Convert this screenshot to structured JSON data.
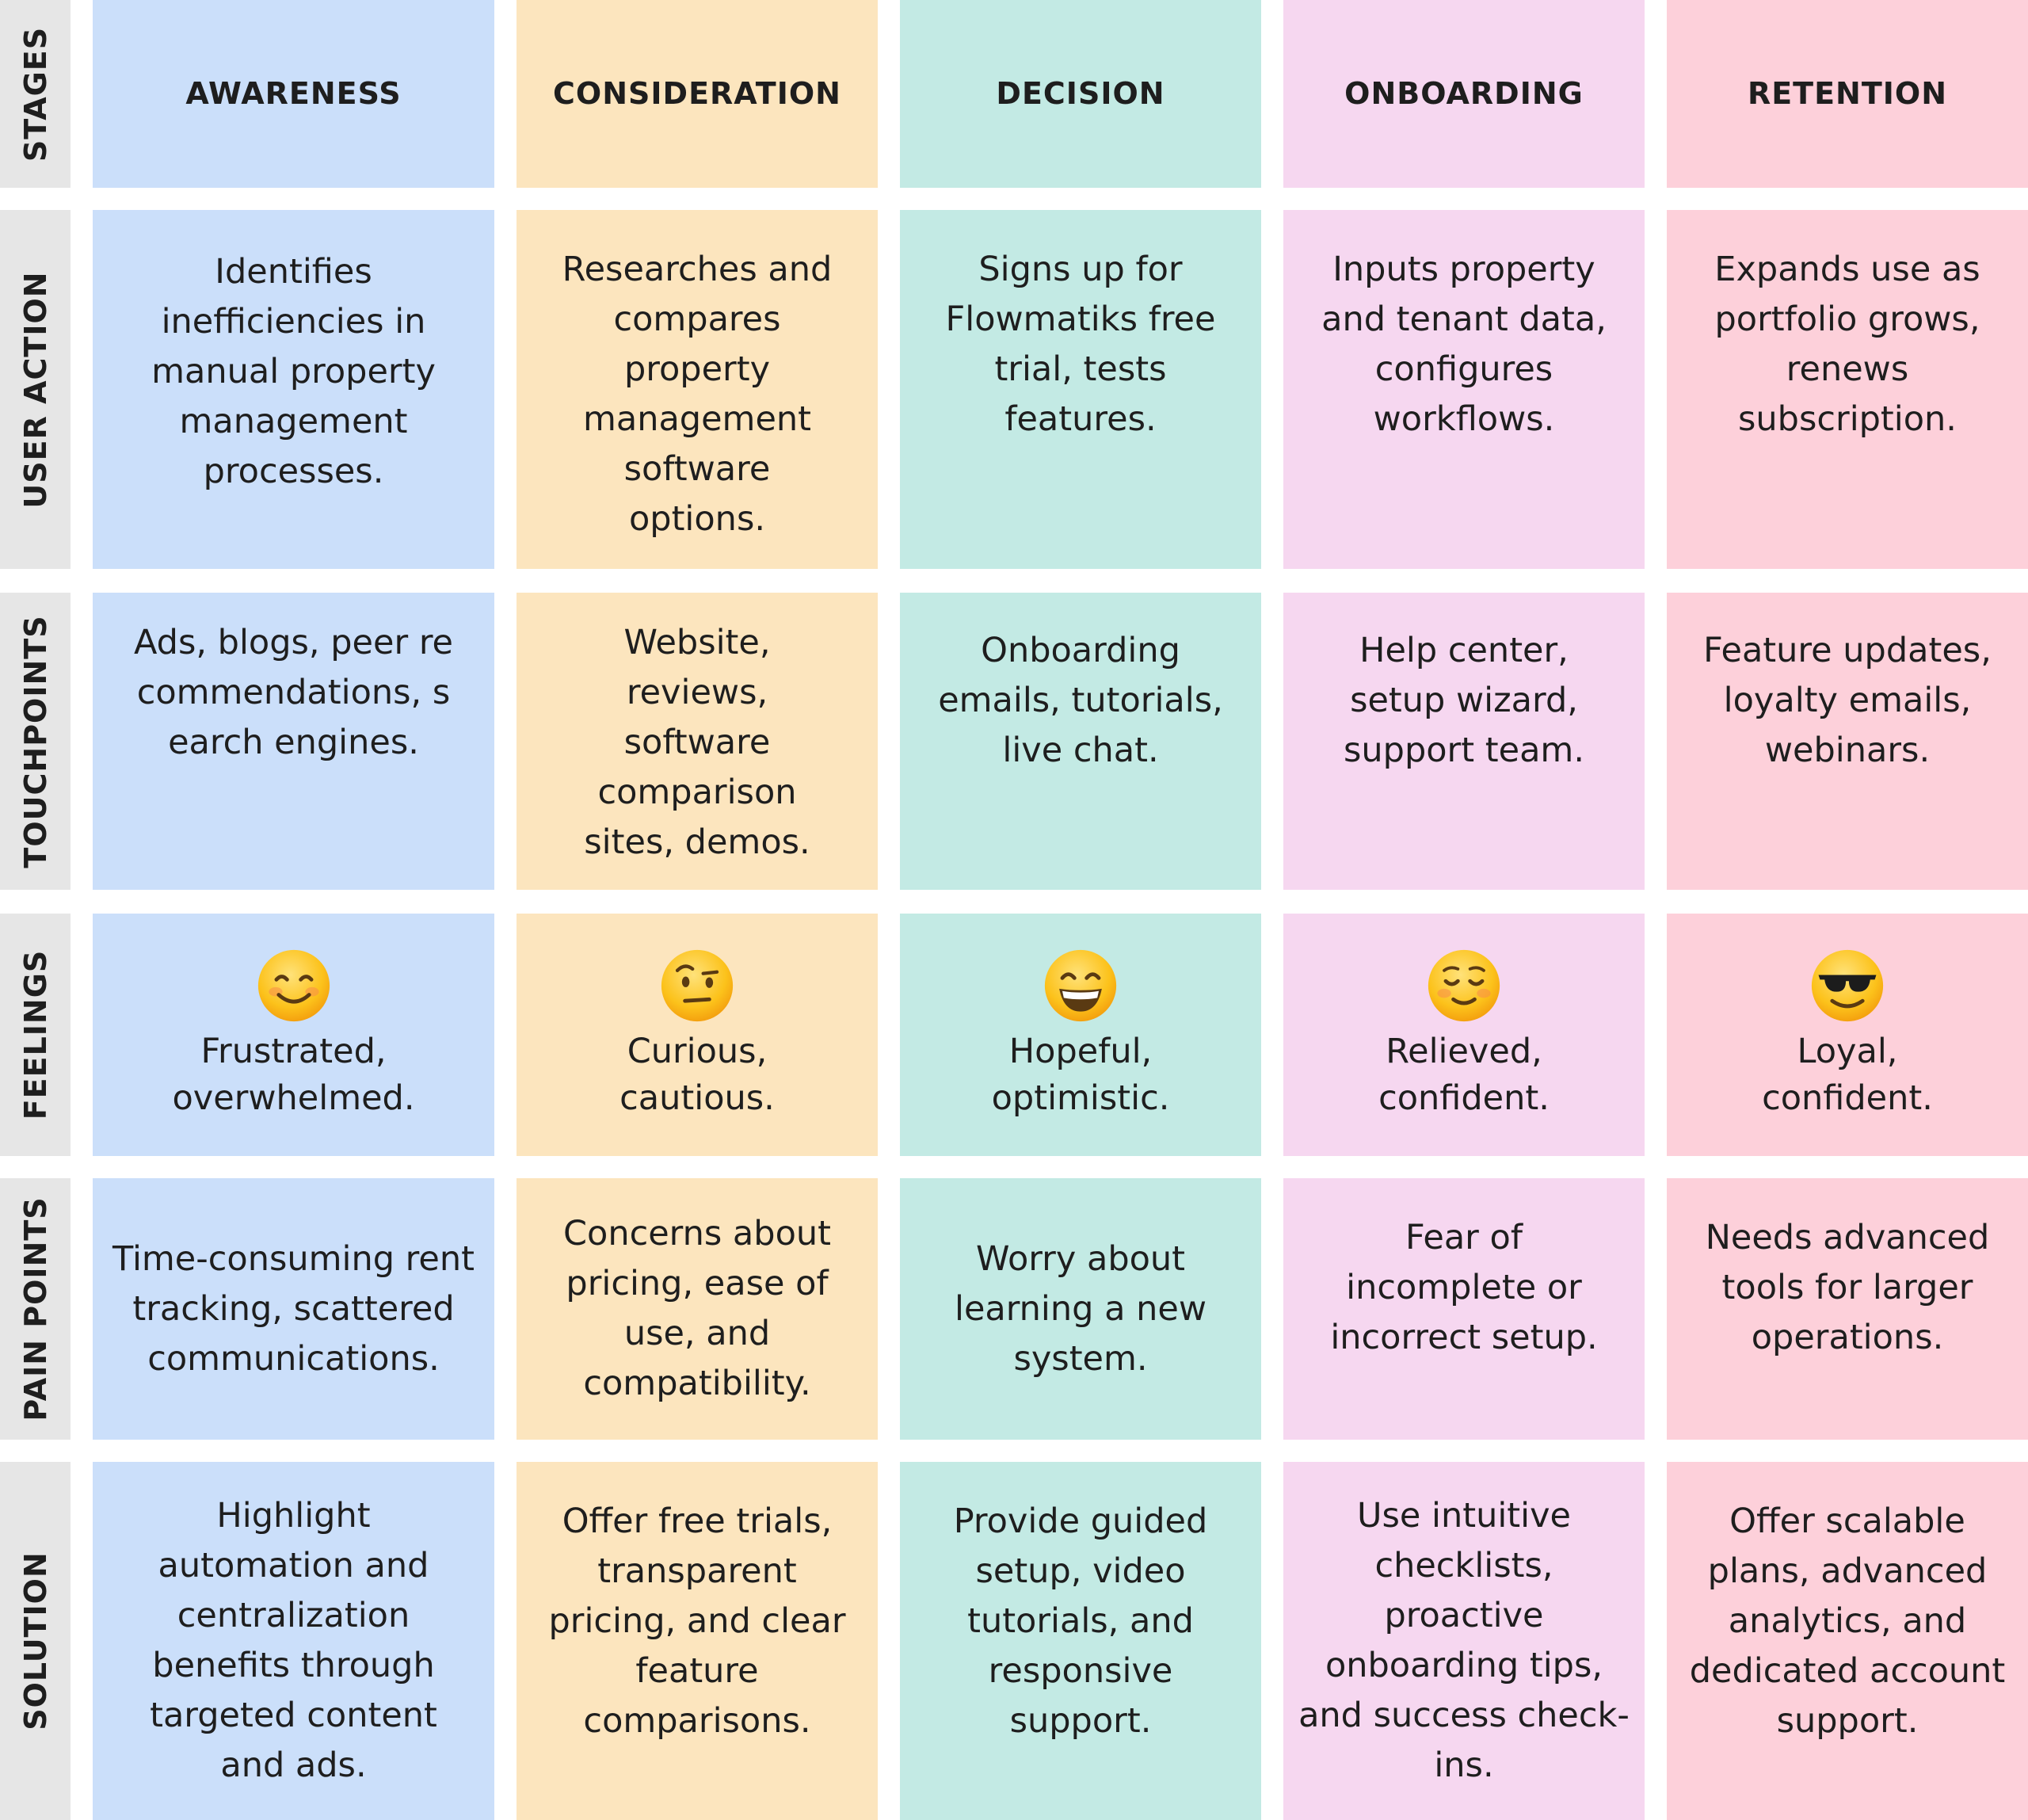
{
  "colors": {
    "awareness": "#cbdffa",
    "consideration": "#fce5be",
    "decision": "#c3eae4",
    "onboarding": "#f6d7f0",
    "retention": "#fdd0da",
    "row_label_bg": "#e6e6e6"
  },
  "row_labels": {
    "stages": "STAGES",
    "user_action": "USER ACTION",
    "touchpoints": "TOUCHPOINTS",
    "feelings": "FEELINGS",
    "pain_points": "PAIN POINTS",
    "solution": "SOLUTION"
  },
  "stages": {
    "awareness": {
      "name": "AWARENESS",
      "user_action": "Identifies inefficiencies in manual property management processes.",
      "touchpoints": "Ads, blogs, peer recommendations, search engines.",
      "feeling_icon": "smiling-face-icon",
      "feeling": "Frustrated, overwhelmed.",
      "pain_points": "Time-consuming rent tracking, scattered communications.",
      "solution": "Highlight automation and centralization benefits through targeted content and ads."
    },
    "consideration": {
      "name": "CONSIDERATION",
      "user_action": "Researches and compares property management software options.",
      "touchpoints": "Website, reviews, software comparison sites, demos.",
      "feeling_icon": "raised-eyebrow-face-icon",
      "feeling": "Curious, cautious.",
      "pain_points": "Concerns about pricing, ease of use, and compatibility.",
      "solution": "Offer free trials, transparent pricing, and clear feature comparisons."
    },
    "decision": {
      "name": "DECISION",
      "user_action": "Signs up for Flowmatiks free trial, tests features.",
      "touchpoints": "Onboarding emails, tutorials, live chat.",
      "feeling_icon": "grinning-face-icon",
      "feeling": "Hopeful, optimistic.",
      "pain_points": "Worry about learning a new system.",
      "solution": "Provide guided setup, video tutorials, and responsive support."
    },
    "onboarding": {
      "name": "ONBOARDING",
      "user_action": "Inputs property and tenant data, configures workflows.",
      "touchpoints": "Help center, setup wizard, support team.",
      "feeling_icon": "relieved-face-icon",
      "feeling": "Relieved, confident.",
      "pain_points": "Fear of incomplete or incorrect setup.",
      "solution": "Use intuitive checklists, proactive onboarding tips, and success check-ins."
    },
    "retention": {
      "name": "RETENTION",
      "user_action": "Expands use as portfolio grows, renews subscription.",
      "touchpoints": "Feature updates, loyalty emails, webinars.",
      "feeling_icon": "sunglasses-face-icon",
      "feeling": "Loyal, confident.",
      "pain_points": "Needs advanced tools for larger operations.",
      "solution": "Offer scalable plans, advanced analytics, and dedicated account support."
    }
  }
}
